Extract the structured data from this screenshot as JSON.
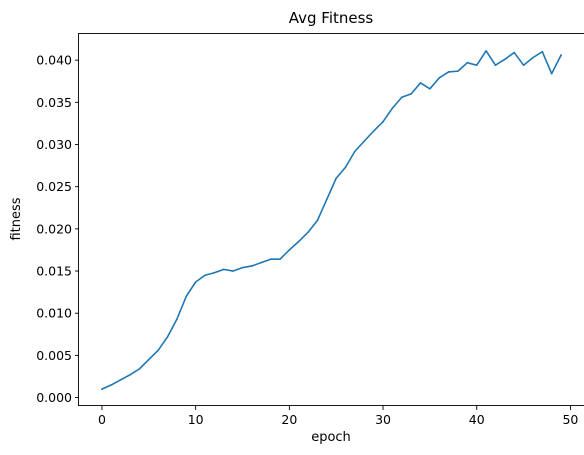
{
  "chart_data": {
    "type": "line",
    "title": "Avg Fitness",
    "xlabel": "epoch",
    "ylabel": "fitness",
    "xlim": [
      -2.45,
      51.45
    ],
    "ylim": [
      -0.001,
      0.0431
    ],
    "xticks": [
      0,
      10,
      20,
      30,
      40,
      50
    ],
    "xtick_labels": [
      "0",
      "10",
      "20",
      "30",
      "40",
      "50"
    ],
    "yticks": [
      0,
      0.005,
      0.01,
      0.015,
      0.02,
      0.025,
      0.03,
      0.035,
      0.04
    ],
    "ytick_labels": [
      "0.000",
      "0.005",
      "0.010",
      "0.015",
      "0.020",
      "0.025",
      "0.030",
      "0.035",
      "0.040"
    ],
    "grid": false,
    "series": [
      {
        "color": "#1f77b4",
        "x": [
          0,
          1,
          2,
          3,
          4,
          5,
          6,
          7,
          8,
          9,
          10,
          11,
          12,
          13,
          14,
          15,
          16,
          17,
          18,
          19,
          20,
          21,
          22,
          23,
          24,
          25,
          26,
          27,
          28,
          29,
          30,
          31,
          32,
          33,
          34,
          35,
          36,
          37,
          38,
          39,
          40,
          41,
          42,
          43,
          44,
          45,
          46,
          47,
          48,
          49
        ],
        "y": [
          0.001,
          0.0015,
          0.0021,
          0.0027,
          0.0034,
          0.0045,
          0.0056,
          0.0072,
          0.0093,
          0.012,
          0.0137,
          0.0145,
          0.0148,
          0.0152,
          0.015,
          0.0154,
          0.0156,
          0.016,
          0.0164,
          0.0164,
          0.0175,
          0.0185,
          0.0196,
          0.021,
          0.0235,
          0.026,
          0.0273,
          0.0292,
          0.0304,
          0.0316,
          0.0327,
          0.0343,
          0.0356,
          0.036,
          0.0373,
          0.0366,
          0.0379,
          0.0386,
          0.0387,
          0.0397,
          0.0394,
          0.0411,
          0.0394,
          0.0401,
          0.0409,
          0.0394,
          0.0403,
          0.041,
          0.0384,
          0.0406
        ]
      }
    ]
  }
}
